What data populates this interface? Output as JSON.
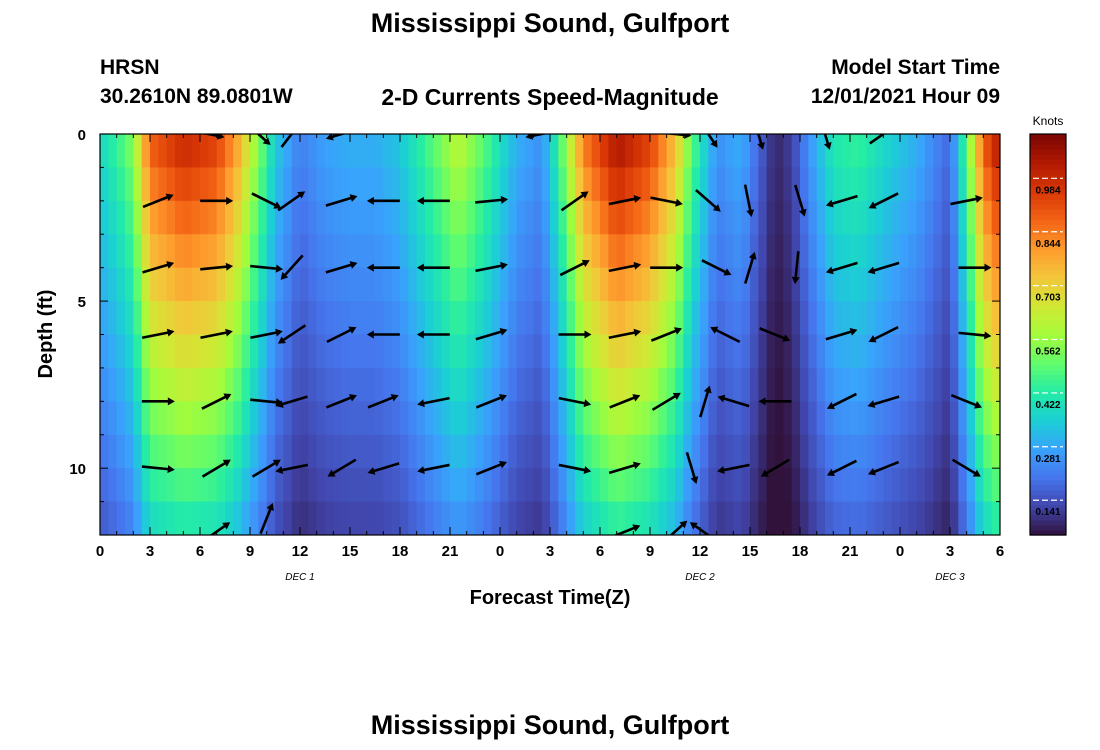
{
  "header": {
    "title": "Mississippi Sound, Gulfport",
    "station_code": "HRSN",
    "station_coords": "30.2610N  89.0801W",
    "subtitle": "2-D Currents Speed-Magnitude",
    "model_start_label": "Model Start Time",
    "model_start_value": "12/01/2021 Hour 09"
  },
  "footer": {
    "title": "Mississippi Sound, Gulfport"
  },
  "colors": {
    "arrow": "#000000",
    "colormap": [
      "#30123b",
      "#4145ab",
      "#4675ed",
      "#39a2fc",
      "#1bcfd4",
      "#24eca6",
      "#61fc6c",
      "#a4fc3b",
      "#d1e834",
      "#f3c63a",
      "#fe9b2d",
      "#f36315",
      "#d93806",
      "#b11901",
      "#7a0402"
    ]
  },
  "chart_data": {
    "type": "heatmap",
    "title": "2-D Currents Speed-Magnitude",
    "xlabel": "Forecast Time(Z)",
    "ylabel": "Depth (ft)",
    "x_unit": "hours since 00Z Dec 1",
    "xlim": [
      0,
      54
    ],
    "ylim": [
      0,
      12
    ],
    "y_reversed": true,
    "x_ticks": [
      0,
      3,
      6,
      9,
      12,
      15,
      18,
      21,
      24,
      27,
      30,
      33,
      36,
      39,
      42,
      45,
      48,
      51,
      54
    ],
    "x_tick_labels": [
      "0",
      "3",
      "6",
      "9",
      "12",
      "15",
      "18",
      "21",
      "0",
      "3",
      "6",
      "9",
      "12",
      "15",
      "18",
      "21",
      "0",
      "3",
      "6"
    ],
    "y_ticks": [
      0,
      5,
      10
    ],
    "y_tick_labels": [
      "0",
      "5",
      "10"
    ],
    "date_labels": [
      {
        "x": 12,
        "label": "DEC 1"
      },
      {
        "x": 36,
        "label": "DEC 2"
      },
      {
        "x": 51,
        "label": "DEC 3"
      }
    ],
    "colorbar": {
      "label": "Knots",
      "min": 0.05,
      "max": 1.1,
      "ticks": [
        0.141,
        0.281,
        0.422,
        0.562,
        0.703,
        0.844,
        0.984
      ]
    },
    "speed_profile": [
      {
        "t": 0,
        "v": 0.38
      },
      {
        "t": 1,
        "v": 0.45
      },
      {
        "t": 1.5,
        "v": 0.5
      },
      {
        "t": 2,
        "v": 0.55
      },
      {
        "t": 3,
        "v": 0.9
      },
      {
        "t": 5,
        "v": 1.0
      },
      {
        "t": 7,
        "v": 0.95
      },
      {
        "t": 8.2,
        "v": 0.8
      },
      {
        "t": 9.5,
        "v": 0.55
      },
      {
        "t": 10.5,
        "v": 0.35
      },
      {
        "t": 12,
        "v": 0.22
      },
      {
        "t": 13.5,
        "v": 0.28
      },
      {
        "t": 15,
        "v": 0.3
      },
      {
        "t": 16.5,
        "v": 0.3
      },
      {
        "t": 18,
        "v": 0.34
      },
      {
        "t": 20,
        "v": 0.5
      },
      {
        "t": 21.5,
        "v": 0.62
      },
      {
        "t": 23,
        "v": 0.5
      },
      {
        "t": 25,
        "v": 0.3
      },
      {
        "t": 26.5,
        "v": 0.25
      },
      {
        "t": 27.5,
        "v": 0.45
      },
      {
        "t": 29,
        "v": 0.85
      },
      {
        "t": 31,
        "v": 1.05
      },
      {
        "t": 33,
        "v": 0.95
      },
      {
        "t": 34.5,
        "v": 0.75
      },
      {
        "t": 35.5,
        "v": 0.5
      },
      {
        "t": 37,
        "v": 0.25
      },
      {
        "t": 38.5,
        "v": 0.3
      },
      {
        "t": 39.5,
        "v": 0.18
      },
      {
        "t": 40.5,
        "v": 0.08
      },
      {
        "t": 41.5,
        "v": 0.12
      },
      {
        "t": 42.5,
        "v": 0.25
      },
      {
        "t": 44,
        "v": 0.42
      },
      {
        "t": 45.5,
        "v": 0.45
      },
      {
        "t": 47,
        "v": 0.38
      },
      {
        "t": 49,
        "v": 0.3
      },
      {
        "t": 51,
        "v": 0.18
      },
      {
        "t": 52,
        "v": 0.5
      },
      {
        "t": 53,
        "v": 0.9
      },
      {
        "t": 54,
        "v": 1.05
      }
    ],
    "arrows": [
      {
        "t": 6.5,
        "d": 0,
        "dx": 1,
        "dy": 0.2
      },
      {
        "t": 9.5,
        "d": 0,
        "dx": 1,
        "dy": 0.9
      },
      {
        "t": 11.5,
        "d": 0,
        "dx": 0.7,
        "dy": -0.9
      },
      {
        "t": 14.5,
        "d": 0,
        "dx": -1,
        "dy": 0.3
      },
      {
        "t": 26.5,
        "d": 0,
        "dx": -1,
        "dy": 0.2
      },
      {
        "t": 34.5,
        "d": 0,
        "dx": 1,
        "dy": 0.1
      },
      {
        "t": 36.5,
        "d": 0,
        "dx": 0.6,
        "dy": 0.9
      },
      {
        "t": 39.5,
        "d": 0,
        "dx": 0.3,
        "dy": 1
      },
      {
        "t": 43.5,
        "d": 0,
        "dx": 0.3,
        "dy": 1
      },
      {
        "t": 47,
        "d": 0,
        "dx": 1,
        "dy": -0.7
      },
      {
        "t": 3.5,
        "d": 2,
        "dx": 1,
        "dy": -0.4
      },
      {
        "t": 7,
        "d": 2,
        "dx": 1,
        "dy": 0
      },
      {
        "t": 10,
        "d": 2,
        "dx": 1,
        "dy": 0.5
      },
      {
        "t": 11.5,
        "d": 2,
        "dx": 1,
        "dy": -0.7
      },
      {
        "t": 14.5,
        "d": 2,
        "dx": 1,
        "dy": -0.3
      },
      {
        "t": 17,
        "d": 2,
        "dx": -1,
        "dy": 0
      },
      {
        "t": 20,
        "d": 2,
        "dx": -1,
        "dy": 0
      },
      {
        "t": 23.5,
        "d": 2,
        "dx": 1,
        "dy": -0.1
      },
      {
        "t": 28.5,
        "d": 2,
        "dx": 1,
        "dy": -0.7
      },
      {
        "t": 31.5,
        "d": 2,
        "dx": 1,
        "dy": -0.2
      },
      {
        "t": 34,
        "d": 2,
        "dx": 1,
        "dy": 0.2
      },
      {
        "t": 36.5,
        "d": 2,
        "dx": 0.8,
        "dy": 0.7
      },
      {
        "t": 38.9,
        "d": 2,
        "dx": 0.2,
        "dy": 1
      },
      {
        "t": 42,
        "d": 2,
        "dx": 0.3,
        "dy": 1
      },
      {
        "t": 44.5,
        "d": 2,
        "dx": -1,
        "dy": 0.3
      },
      {
        "t": 47,
        "d": 2,
        "dx": -1,
        "dy": 0.5
      },
      {
        "t": 52,
        "d": 2,
        "dx": 1,
        "dy": -0.2
      },
      {
        "t": 3.5,
        "d": 4,
        "dx": 1,
        "dy": -0.3
      },
      {
        "t": 7,
        "d": 4,
        "dx": 1,
        "dy": -0.1
      },
      {
        "t": 10,
        "d": 4,
        "dx": 1,
        "dy": 0.1
      },
      {
        "t": 11.5,
        "d": 4,
        "dx": -0.9,
        "dy": 1
      },
      {
        "t": 14.5,
        "d": 4,
        "dx": 1,
        "dy": -0.3
      },
      {
        "t": 17,
        "d": 4,
        "dx": -1,
        "dy": 0
      },
      {
        "t": 20,
        "d": 4,
        "dx": -1,
        "dy": 0
      },
      {
        "t": 23.5,
        "d": 4,
        "dx": 1,
        "dy": -0.2
      },
      {
        "t": 28.5,
        "d": 4,
        "dx": 1,
        "dy": -0.5
      },
      {
        "t": 31.5,
        "d": 4,
        "dx": 1,
        "dy": -0.2
      },
      {
        "t": 34,
        "d": 4,
        "dx": 1,
        "dy": 0
      },
      {
        "t": 37,
        "d": 4,
        "dx": 1,
        "dy": 0.5
      },
      {
        "t": 39,
        "d": 4,
        "dx": 0.3,
        "dy": -1
      },
      {
        "t": 41.8,
        "d": 4,
        "dx": -0.1,
        "dy": 1
      },
      {
        "t": 44.5,
        "d": 4,
        "dx": -1,
        "dy": 0.3
      },
      {
        "t": 47,
        "d": 4,
        "dx": -1,
        "dy": 0.3
      },
      {
        "t": 52.5,
        "d": 4,
        "dx": 1,
        "dy": 0
      },
      {
        "t": 3.5,
        "d": 6,
        "dx": 1,
        "dy": -0.2
      },
      {
        "t": 7,
        "d": 6,
        "dx": 1,
        "dy": -0.2
      },
      {
        "t": 10,
        "d": 6,
        "dx": 1,
        "dy": -0.2
      },
      {
        "t": 11.5,
        "d": 6,
        "dx": -0.9,
        "dy": 0.6
      },
      {
        "t": 14.5,
        "d": 6,
        "dx": 1,
        "dy": -0.5
      },
      {
        "t": 17,
        "d": 6,
        "dx": -1,
        "dy": 0
      },
      {
        "t": 20,
        "d": 6,
        "dx": -1,
        "dy": 0
      },
      {
        "t": 23.5,
        "d": 6,
        "dx": 1,
        "dy": -0.3
      },
      {
        "t": 28.5,
        "d": 6,
        "dx": 1,
        "dy": 0
      },
      {
        "t": 31.5,
        "d": 6,
        "dx": 1,
        "dy": -0.2
      },
      {
        "t": 34,
        "d": 6,
        "dx": 1,
        "dy": -0.4
      },
      {
        "t": 37.5,
        "d": 6,
        "dx": -1,
        "dy": -0.5
      },
      {
        "t": 40.5,
        "d": 6,
        "dx": 1,
        "dy": 0.4
      },
      {
        "t": 44.5,
        "d": 6,
        "dx": 1,
        "dy": -0.3
      },
      {
        "t": 47,
        "d": 6,
        "dx": -1,
        "dy": 0.5
      },
      {
        "t": 52.5,
        "d": 6,
        "dx": 1,
        "dy": 0.1
      },
      {
        "t": 3.5,
        "d": 8,
        "dx": 1,
        "dy": 0
      },
      {
        "t": 7,
        "d": 8,
        "dx": 1,
        "dy": -0.5
      },
      {
        "t": 10,
        "d": 8,
        "dx": 1,
        "dy": 0.1
      },
      {
        "t": 11.5,
        "d": 8,
        "dx": -1,
        "dy": 0.3
      },
      {
        "t": 14.5,
        "d": 8,
        "dx": 1,
        "dy": -0.4
      },
      {
        "t": 17,
        "d": 8,
        "dx": 1,
        "dy": -0.4
      },
      {
        "t": 20,
        "d": 8,
        "dx": -1,
        "dy": 0.2
      },
      {
        "t": 23.5,
        "d": 8,
        "dx": 1,
        "dy": -0.4
      },
      {
        "t": 28.5,
        "d": 8,
        "dx": 1,
        "dy": 0.2
      },
      {
        "t": 31.5,
        "d": 8,
        "dx": 1,
        "dy": -0.4
      },
      {
        "t": 34,
        "d": 8,
        "dx": 1,
        "dy": -0.6
      },
      {
        "t": 36.3,
        "d": 8,
        "dx": 0.3,
        "dy": -1
      },
      {
        "t": 38,
        "d": 8,
        "dx": -1,
        "dy": -0.3
      },
      {
        "t": 40.5,
        "d": 8,
        "dx": -1,
        "dy": 0
      },
      {
        "t": 44.5,
        "d": 8,
        "dx": -1,
        "dy": 0.5
      },
      {
        "t": 47,
        "d": 8,
        "dx": -1,
        "dy": 0.3
      },
      {
        "t": 52,
        "d": 8,
        "dx": 1,
        "dy": 0.4
      },
      {
        "t": 3.5,
        "d": 10,
        "dx": 1,
        "dy": 0.1
      },
      {
        "t": 7,
        "d": 10,
        "dx": 1,
        "dy": -0.6
      },
      {
        "t": 10,
        "d": 10,
        "dx": 1,
        "dy": -0.6
      },
      {
        "t": 11.5,
        "d": 10,
        "dx": -1,
        "dy": 0.2
      },
      {
        "t": 14.5,
        "d": 10,
        "dx": -1,
        "dy": 0.6
      },
      {
        "t": 17,
        "d": 10,
        "dx": -1,
        "dy": 0.3
      },
      {
        "t": 20,
        "d": 10,
        "dx": -1,
        "dy": 0.2
      },
      {
        "t": 23.5,
        "d": 10,
        "dx": 1,
        "dy": -0.4
      },
      {
        "t": 28.5,
        "d": 10,
        "dx": 1,
        "dy": 0.2
      },
      {
        "t": 31.5,
        "d": 10,
        "dx": 1,
        "dy": -0.3
      },
      {
        "t": 35.5,
        "d": 10,
        "dx": 0.3,
        "dy": 1
      },
      {
        "t": 38,
        "d": 10,
        "dx": -1,
        "dy": 0.2
      },
      {
        "t": 40.5,
        "d": 10,
        "dx": -1,
        "dy": 0.6
      },
      {
        "t": 44.5,
        "d": 10,
        "dx": -1,
        "dy": 0.5
      },
      {
        "t": 47,
        "d": 10,
        "dx": -1,
        "dy": 0.4
      },
      {
        "t": 52,
        "d": 10,
        "dx": 1,
        "dy": 0.6
      },
      {
        "t": 7,
        "d": 11.9,
        "dx": 1,
        "dy": -0.7
      },
      {
        "t": 10,
        "d": 11.5,
        "dx": 0.4,
        "dy": -1
      },
      {
        "t": 31.5,
        "d": 11.9,
        "dx": 1,
        "dy": -0.4
      },
      {
        "t": 34.5,
        "d": 11.9,
        "dx": 1,
        "dy": -0.9
      },
      {
        "t": 36.2,
        "d": 11.9,
        "dx": -1,
        "dy": -0.7
      }
    ]
  }
}
